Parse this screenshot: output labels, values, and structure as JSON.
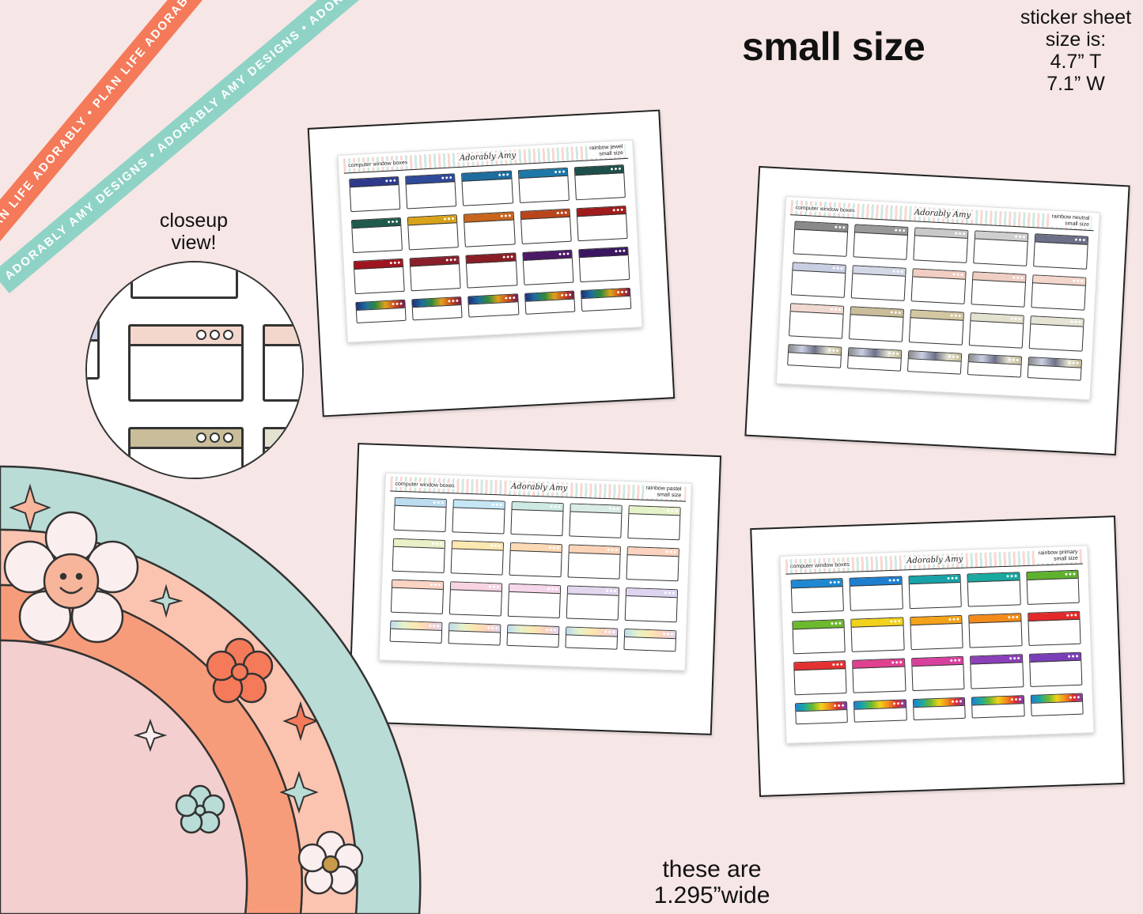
{
  "headline": "small size",
  "sheet_size": {
    "line1": "sticker sheet",
    "line2": "size is:",
    "height": "4.7” T",
    "width": "7.1” W"
  },
  "closeup": {
    "line1": "closeup",
    "line2": "view!"
  },
  "width_note": {
    "line1": "these are",
    "line2": "1.295”wide"
  },
  "ribbons": {
    "orange_text": "PLAN LIFE ADORABLY • PLAN LIFE ADORABLY • PLAN LIFE AD",
    "teal_text": "ADORABLY AMY DESIGNS • ADORABLY AMY DESIGNS • ADORABLY AMY DESIGNS"
  },
  "colors": {
    "background": "#f6e6e6",
    "ribbon_orange": "#f47a5a",
    "ribbon_teal": "#8fd3c6",
    "rainbow_outer": "#b9dcd6",
    "rainbow_mid": "#fbc4b0",
    "rainbow_orange": "#f79c7a",
    "rainbow_inner": "#f3cfcf"
  },
  "sheets": [
    {
      "name": "computer window boxes",
      "brand": "Adorably Amy",
      "variant_line1": "rainbow jewel",
      "variant_line2": "small size",
      "bars": [
        "#2d3a8c",
        "#2f4a9a",
        "#1f6d9e",
        "#1d78a8",
        "#1f4f4a",
        "#1f5a4d",
        "#d9a21b",
        "#c8651d",
        "#b9461b",
        "#a01b1b",
        "#a0141f",
        "#8a1e2a",
        "#8a1d25",
        "#4a1a66",
        "#3a1660",
        "rainbow-dark",
        "rainbow-dark",
        "rainbow-dark",
        "rainbow-dark",
        "rainbow-dark"
      ]
    },
    {
      "name": "computer window boxes",
      "brand": "Adorably Amy",
      "variant_line1": "rainbow neutral",
      "variant_line2": "small size",
      "bars": [
        "#8a8a8a",
        "#9a9a9a",
        "#c9c9c9",
        "#cfcfcf",
        "#6d7088",
        "#c9cfe3",
        "#d3d8e6",
        "#f1cdc2",
        "#efcfc3",
        "#f3d7cc",
        "#f1d9d2",
        "#c9bd9a",
        "#d3c7a1",
        "#e3e1cf",
        "#e5e3d3",
        "neutral-grad",
        "neutral-grad",
        "neutral-grad",
        "neutral-grad",
        "neutral-grad"
      ]
    },
    {
      "name": "computer window boxes",
      "brand": "Adorably Amy",
      "variant_line1": "rainbow pastel",
      "variant_line2": "small size",
      "bars": [
        "#bcdcf0",
        "#c4e6f5",
        "#cde9e3",
        "#d9ece5",
        "#e6f2c9",
        "#e9f0c7",
        "#fbe7b0",
        "#fcd9b5",
        "#fbd3b7",
        "#fcd3c0",
        "#fbd3c3",
        "#f7d3e3",
        "#f6d6ea",
        "#e3d6ef",
        "#ddd5f0",
        "pastel-grad",
        "pastel-grad",
        "pastel-grad",
        "pastel-grad",
        "pastel-grad"
      ]
    },
    {
      "name": "computer window boxes",
      "brand": "Adorably Amy",
      "variant_line1": "rainbow primary",
      "variant_line2": "small size",
      "bars": [
        "#1e88d0",
        "#1e7fd0",
        "#17a3a8",
        "#1aa9a0",
        "#5fb22e",
        "#6db92e",
        "#f2d21b",
        "#f5a21b",
        "#f28b1b",
        "#e32a2a",
        "#e33030",
        "#e0408f",
        "#d9409e",
        "#8b3fb8",
        "#7a3fb8",
        "primary-grad",
        "primary-grad",
        "primary-grad",
        "primary-grad",
        "primary-grad"
      ]
    }
  ],
  "closeup_bars": [
    "#f3d6cc",
    "#c9bd9a",
    "#e3e1cf"
  ]
}
